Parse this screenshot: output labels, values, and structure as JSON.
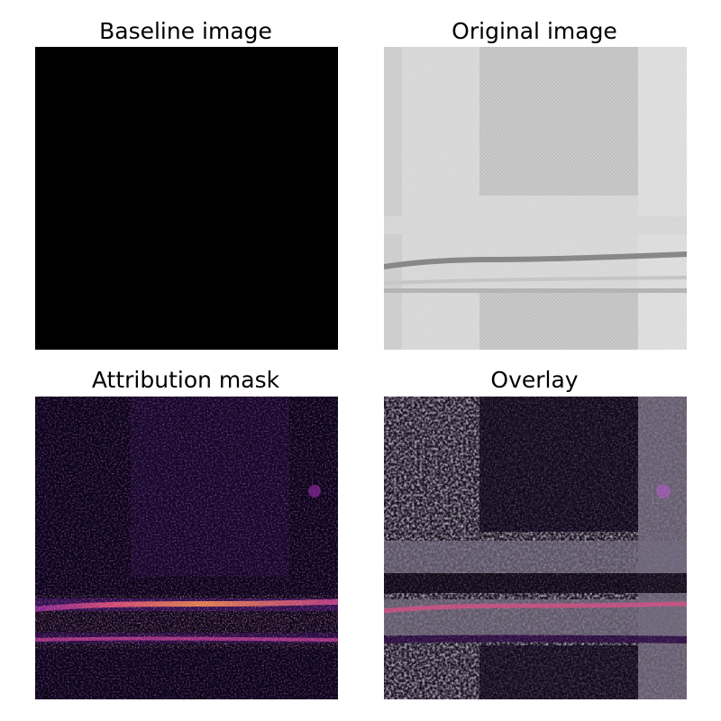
{
  "figure": {
    "panels": [
      {
        "id": "baseline",
        "title": "Baseline image"
      },
      {
        "id": "original",
        "title": "Original image"
      },
      {
        "id": "mask",
        "title": "Attribution mask"
      },
      {
        "id": "overlay",
        "title": "Overlay"
      }
    ]
  },
  "colors": {
    "background": "#ffffff",
    "baseline_fill": "#000000",
    "original_light": "#e6e6e6",
    "original_dark": "#8a8a8a",
    "mask_background": "#0a0416",
    "mask_purple": "#5b1a8a",
    "mask_hot": "#f5a04a",
    "overlay_gray": "#6e6a78"
  }
}
